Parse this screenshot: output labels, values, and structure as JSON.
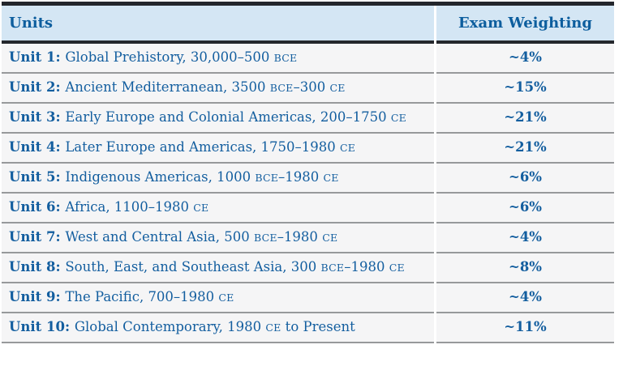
{
  "colors": {
    "accent_blue": "#0d5e9e",
    "header_bg": "#d4e6f4",
    "dark_border": "#23262c",
    "row_bg": "#f5f5f6",
    "row_separator": "#97999b"
  },
  "table": {
    "columns": [
      {
        "label": "Units"
      },
      {
        "label": "Exam Weighting"
      }
    ],
    "rows": [
      {
        "unit": "Unit 1:",
        "description": [
          {
            "t": "Global Prehistory, 30,000–500 "
          },
          {
            "t": "BCE",
            "sc": true
          }
        ],
        "weighting": "~4%"
      },
      {
        "unit": "Unit 2:",
        "description": [
          {
            "t": "Ancient Mediterranean, 3500 "
          },
          {
            "t": "BCE",
            "sc": true
          },
          {
            "t": "–300 "
          },
          {
            "t": "CE",
            "sc": true
          }
        ],
        "weighting": "~15%"
      },
      {
        "unit": "Unit 3:",
        "description": [
          {
            "t": "Early Europe and Colonial Americas, 200–1750 "
          },
          {
            "t": "CE",
            "sc": true
          }
        ],
        "weighting": "~21%"
      },
      {
        "unit": "Unit 4:",
        "description": [
          {
            "t": "Later Europe and Americas, 1750–1980 "
          },
          {
            "t": "CE",
            "sc": true
          }
        ],
        "weighting": "~21%"
      },
      {
        "unit": "Unit 5:",
        "description": [
          {
            "t": "Indigenous Americas, 1000 "
          },
          {
            "t": "BCE",
            "sc": true
          },
          {
            "t": "–1980 "
          },
          {
            "t": "CE",
            "sc": true
          }
        ],
        "weighting": "~6%"
      },
      {
        "unit": "Unit 6:",
        "description": [
          {
            "t": "Africa, 1100–1980 "
          },
          {
            "t": "CE",
            "sc": true
          }
        ],
        "weighting": "~6%"
      },
      {
        "unit": "Unit 7:",
        "description": [
          {
            "t": "West and Central Asia, 500 "
          },
          {
            "t": "BCE",
            "sc": true
          },
          {
            "t": "–1980 "
          },
          {
            "t": "CE",
            "sc": true
          }
        ],
        "weighting": "~4%"
      },
      {
        "unit": "Unit 8:",
        "description": [
          {
            "t": "South, East, and Southeast Asia, 300 "
          },
          {
            "t": "BCE",
            "sc": true
          },
          {
            "t": "–1980 "
          },
          {
            "t": "CE",
            "sc": true
          }
        ],
        "weighting": "~8%"
      },
      {
        "unit": "Unit 9:",
        "description": [
          {
            "t": "The Pacific, 700–1980 "
          },
          {
            "t": "CE",
            "sc": true
          }
        ],
        "weighting": "~4%"
      },
      {
        "unit": "Unit 10:",
        "description": [
          {
            "t": "Global Contemporary, 1980 "
          },
          {
            "t": "CE",
            "sc": true
          },
          {
            "t": " to Present"
          }
        ],
        "weighting": "~11%"
      }
    ]
  },
  "chart_data": {
    "type": "table",
    "columns": [
      "Units",
      "Exam Weighting"
    ],
    "categories": [
      "Unit 1: Global Prehistory, 30,000–500 BCE",
      "Unit 2: Ancient Mediterranean, 3500 BCE–300 CE",
      "Unit 3: Early Europe and Colonial Americas, 200–1750 CE",
      "Unit 4: Later Europe and Americas, 1750–1980 CE",
      "Unit 5: Indigenous Americas, 1000 BCE–1980 CE",
      "Unit 6: Africa, 1100–1980 CE",
      "Unit 7: West and Central Asia, 500 BCE–1980 CE",
      "Unit 8: South, East, and Southeast Asia, 300 BCE–1980 CE",
      "Unit 9: The Pacific, 700–1980 CE",
      "Unit 10: Global Contemporary, 1980 CE to Present"
    ],
    "values_percent": [
      4,
      15,
      21,
      21,
      6,
      6,
      4,
      8,
      4,
      11
    ]
  }
}
